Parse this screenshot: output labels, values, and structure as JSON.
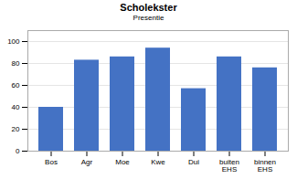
{
  "chart_data": {
    "type": "bar",
    "title": "Scholekster",
    "subtitle": "Presentie",
    "categories": [
      "Bos",
      "Agr",
      "Moe",
      "Kwe",
      "Dui",
      "buiten\nEHS",
      "binnen\nEHS"
    ],
    "values": [
      40,
      83,
      86,
      94,
      57,
      86,
      76
    ],
    "color": "#4472C4",
    "ylim": [
      0,
      110
    ],
    "yticks": [
      0,
      20,
      40,
      60,
      80,
      100
    ],
    "grid": true
  }
}
